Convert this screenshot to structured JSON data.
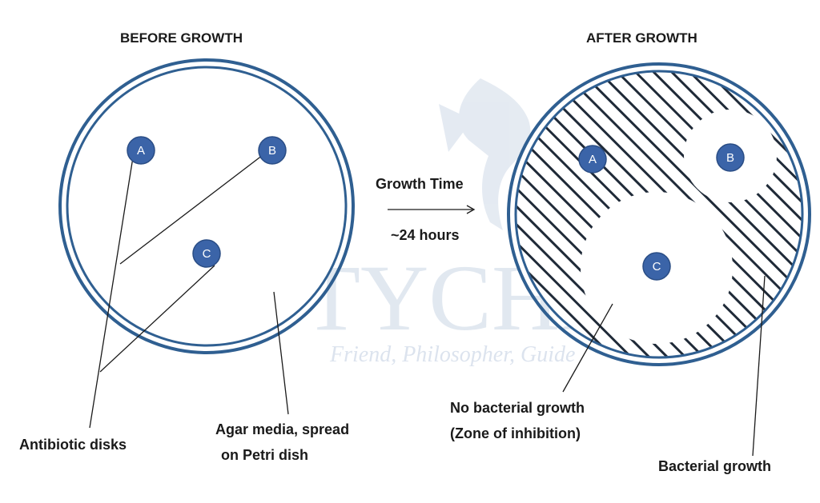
{
  "headings": {
    "before": "BEFORE GROWTH",
    "after": "AFTER GROWTH"
  },
  "arrow": {
    "top_label": "Growth Time",
    "bottom_label": "~24 hours"
  },
  "disks": {
    "a": "A",
    "b": "B",
    "c": "C"
  },
  "labels": {
    "antibiotic_disks": "Antibiotic disks",
    "agar_line1": "Agar media, spread",
    "agar_line2": "on Petri dish",
    "no_growth_line1": "No bacterial growth",
    "no_growth_line2": "(Zone of inhibition)",
    "bacterial_growth": "Bacterial growth"
  },
  "watermark": {
    "logo_text": "TYCHR",
    "tagline": "Friend, Philosopher, Guide"
  },
  "colors": {
    "dish_outline": "#2f5f91",
    "disk_fill": "#3b64a8",
    "hatch": "#1f2a38",
    "watermark": "#c5d2e3"
  }
}
